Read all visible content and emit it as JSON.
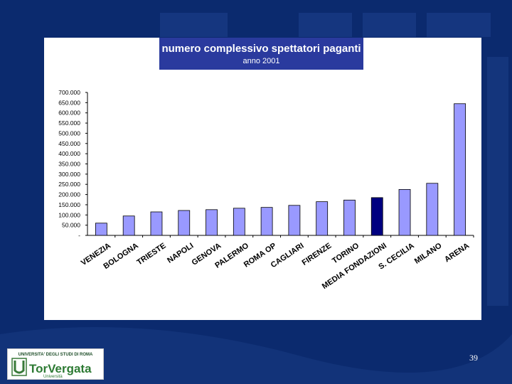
{
  "slide": {
    "page_number": "39",
    "logo_top_text": "UNIVERSITA' DEGLI STUDI DI ROMA",
    "logo_brand": "TorVergata",
    "logo_sub": "Università"
  },
  "colors": {
    "background": "#0b2a6e",
    "bar": "#9999ff",
    "bar_highlight": "#000080",
    "title_box": "#2a3a9e"
  },
  "chart_data": {
    "type": "bar",
    "title": "numero complessivo spettatori paganti",
    "subtitle": "anno 2001",
    "categories": [
      "VENEZIA",
      "BOLOGNA",
      "TRIESTE",
      "NAPOLI",
      "GENOVA",
      "PALERMO",
      "ROMA OP",
      "CAGLIARI",
      "FIRENZE",
      "TORINO",
      "MEDIA FONDAZIONI",
      "S. CECILIA",
      "MILANO",
      "ARENA"
    ],
    "values": [
      60000,
      95000,
      115000,
      122000,
      126000,
      133000,
      137000,
      147000,
      165000,
      173000,
      185000,
      225000,
      255000,
      645000
    ],
    "highlight": "MEDIA FONDAZIONI",
    "ylim": [
      0,
      700000
    ],
    "yticks": [
      "-",
      "50.000",
      "100.000",
      "150.000",
      "200.000",
      "250.000",
      "300.000",
      "350.000",
      "400.000",
      "450.000",
      "500.000",
      "550.000",
      "600.000",
      "650.000",
      "700.000"
    ],
    "xlabel": "",
    "ylabel": ""
  }
}
